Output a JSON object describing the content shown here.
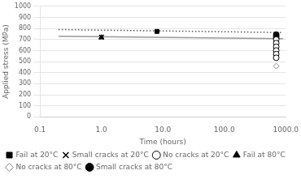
{
  "chart_data": {
    "type": "scatter",
    "xlabel": "Time (hours)",
    "ylabel": "Applied stress (MPa)",
    "log": "x",
    "xlim": [
      0.1,
      1000.0
    ],
    "xticks": [
      0.1,
      {
        "value": 1.0,
        "label": "1.0"
      },
      {
        "value": 10.0,
        "label": "10.0"
      },
      {
        "value": 100.0,
        "label": "100.0"
      },
      {
        "value": 1000.0,
        "label": "1000.0"
      }
    ],
    "ylim": [
      0,
      1000
    ],
    "yticks": [
      0,
      100,
      200,
      300,
      400,
      500,
      600,
      700,
      800,
      900,
      1000
    ],
    "grid": "y",
    "legend": "lower left",
    "series": [
      {
        "type": "line",
        "line_style": "solid",
        "color": "#999999",
        "x": [
          0.2,
          900.0
        ],
        "values": [
          730,
          708
        ]
      },
      {
        "type": "line",
        "line_style": "dotted",
        "color": "#555555",
        "x": [
          0.2,
          900.0
        ],
        "values": [
          790,
          763
        ]
      },
      {
        "name": "Fail at 20°C",
        "type": "scatter",
        "marker": "square",
        "color": "black",
        "x": [
          8.0
        ],
        "values": [
          773
        ]
      },
      {
        "name": "Small cracks at 20°C",
        "type": "scatter",
        "marker": "x",
        "color": "black",
        "x": [
          1.0
        ],
        "values": [
          722
        ]
      },
      {
        "name": "No cracks at 20°C",
        "type": "scatter",
        "marker": "open_circle",
        "color": "black",
        "x": [
          700,
          700,
          700,
          700,
          700,
          700
        ],
        "values": [
          700,
          667,
          634,
          601,
          568,
          535
        ]
      },
      {
        "name": "Fail at 80°C",
        "type": "scatter",
        "marker": "triangle",
        "color": "black",
        "x": [
          1.0
        ],
        "values": [
          718
        ]
      },
      {
        "name": "No cracks at 80°C",
        "type": "scatter",
        "marker": "open_diamond",
        "color": "#888888",
        "x": [
          700
        ],
        "values": [
          460
        ]
      },
      {
        "name": "Small cracks at 80°C",
        "type": "scatter",
        "marker": "circle",
        "color": "black",
        "x": [
          700,
          700,
          700
        ],
        "values": [
          745,
          730,
          714
        ]
      }
    ]
  }
}
